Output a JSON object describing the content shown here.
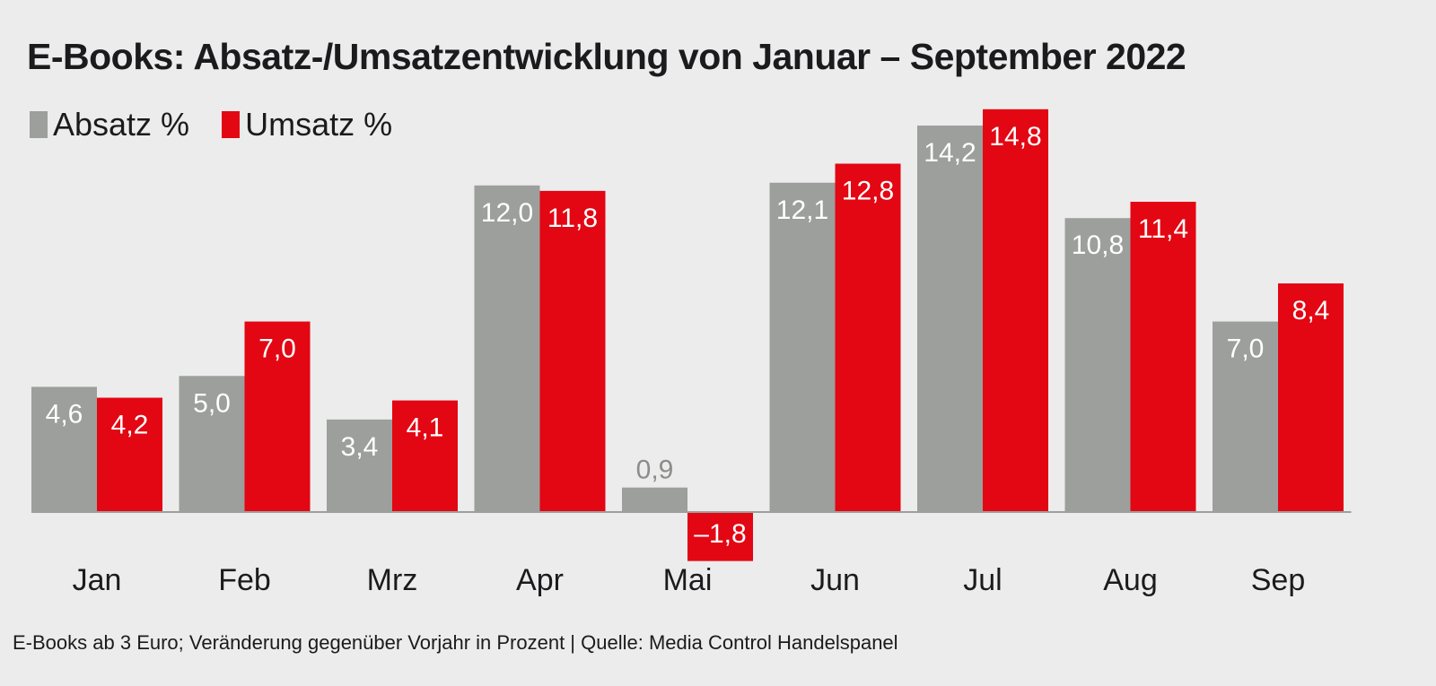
{
  "chart_data": {
    "type": "bar",
    "title": "E-Books: Absatz-/Umsatzentwicklung von Januar – September 2022",
    "xlabel": "",
    "ylabel": "",
    "categories": [
      "Jan",
      "Feb",
      "Mrz",
      "Apr",
      "Mai",
      "Jun",
      "Jul",
      "Aug",
      "Sep"
    ],
    "series": [
      {
        "name": "Absatz %",
        "color": "#9c9f9b",
        "values": [
          4.6,
          5.0,
          3.4,
          12.0,
          0.9,
          12.1,
          14.2,
          10.8,
          7.0
        ],
        "labels": [
          "4,6",
          "5,0",
          "3,4",
          "12,0",
          "0,9",
          "12,1",
          "14,2",
          "10,8",
          "7,0"
        ]
      },
      {
        "name": "Umsatz %",
        "color": "#e30613",
        "values": [
          4.2,
          7.0,
          4.1,
          11.8,
          -1.8,
          12.8,
          14.8,
          11.4,
          8.4
        ],
        "labels": [
          "4,2",
          "7,0",
          "4,1",
          "11,8",
          "–1,8",
          "12,8",
          "14,8",
          "11,4",
          "8,4"
        ]
      }
    ],
    "ylim": [
      -1.8,
      14.8
    ],
    "grid": false,
    "legend_position": "top-left",
    "footnote": "E-Books ab 3 Euro; Veränderung gegenüber Vorjahr in Prozent | Quelle: Media Control Handelspanel"
  }
}
